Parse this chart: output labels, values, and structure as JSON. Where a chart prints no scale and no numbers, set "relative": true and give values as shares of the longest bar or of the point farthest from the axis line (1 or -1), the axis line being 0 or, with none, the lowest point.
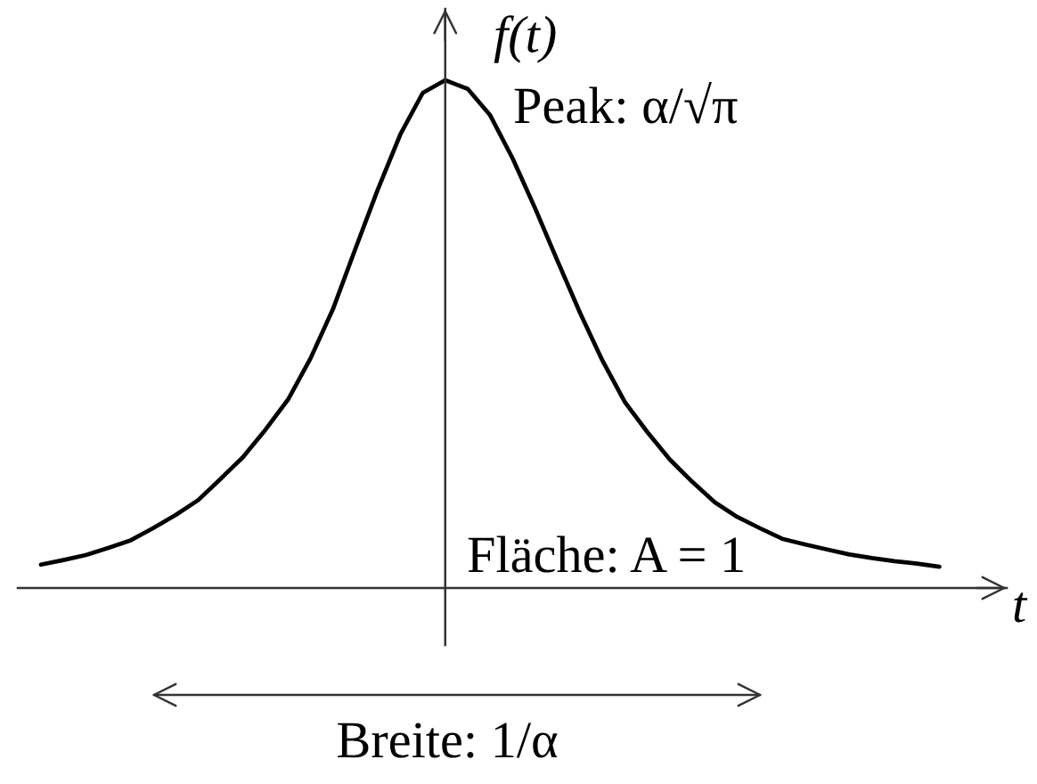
{
  "chart_data": {
    "type": "line",
    "relative": true,
    "xlabel": "t",
    "ylabel": "f(t)",
    "annotations": [
      "Peak: α/√π",
      "Fläche: A = 1",
      "Breite: 1/α"
    ],
    "categories": [
      null,
      null,
      null,
      null,
      null,
      null,
      null,
      null,
      null,
      null,
      null,
      null,
      null,
      null,
      null,
      null,
      null,
      null,
      null,
      null,
      null,
      null,
      null,
      null,
      null,
      null,
      null,
      null,
      null,
      null,
      null,
      null,
      null,
      null,
      null,
      null,
      null,
      null,
      null,
      null,
      null
    ],
    "series": [
      {
        "color": "#000000",
        "values": [
          0.046,
          0.055,
          0.065,
          0.079,
          0.094,
          0.118,
          0.144,
          0.173,
          0.215,
          0.258,
          0.312,
          0.371,
          0.452,
          0.549,
          0.668,
          0.785,
          0.893,
          0.975,
          1,
          0.983,
          0.931,
          0.846,
          0.748,
          0.644,
          0.542,
          0.448,
          0.366,
          0.307,
          0.253,
          0.209,
          0.169,
          0.14,
          0.118,
          0.097,
          0.086,
          0.076,
          0.066,
          0.059,
          0.053,
          0.048,
          0.042
        ]
      }
    ]
  }
}
